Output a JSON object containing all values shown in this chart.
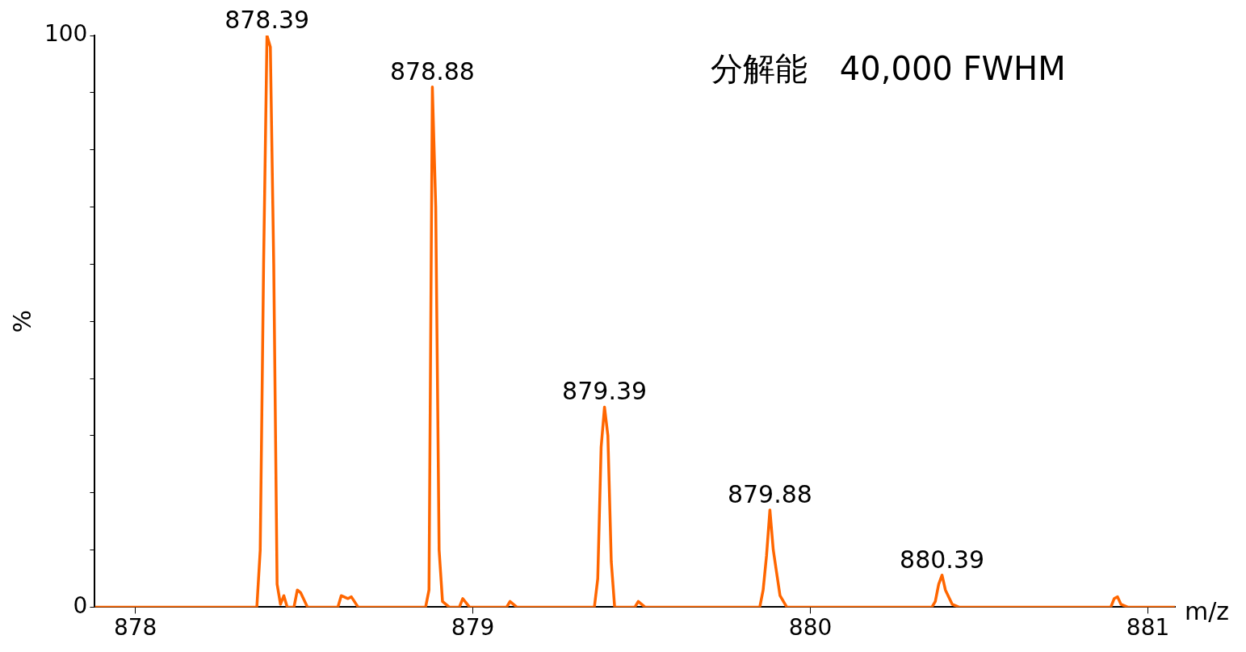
{
  "chart_data": {
    "type": "line",
    "xlabel": "m/z",
    "ylabel": "%",
    "color": "#ff6600",
    "marker": "none",
    "line_style": "solid",
    "grid": false,
    "legend": false,
    "x": [
      877.88,
      878.0,
      878.36,
      878.37,
      878.38,
      878.39,
      878.4,
      878.41,
      878.42,
      878.43,
      878.44,
      878.45,
      878.47,
      878.48,
      878.49,
      878.51,
      878.6,
      878.61,
      878.63,
      878.64,
      878.66,
      878.86,
      878.87,
      878.88,
      878.89,
      878.9,
      878.91,
      878.93,
      878.96,
      878.97,
      878.99,
      879.1,
      879.11,
      879.13,
      879.36,
      879.37,
      879.38,
      879.39,
      879.4,
      879.41,
      879.42,
      879.48,
      879.49,
      879.51,
      879.85,
      879.86,
      879.87,
      879.88,
      879.89,
      879.9,
      879.91,
      879.93,
      880.36,
      880.37,
      880.38,
      880.39,
      880.4,
      880.42,
      880.44,
      880.89,
      880.9,
      880.91,
      880.92,
      880.94,
      881.08
    ],
    "series": [
      {
        "values": [
          0,
          0,
          0,
          10,
          60,
          100,
          98,
          60,
          4,
          0.5,
          2,
          0,
          0,
          3,
          2.5,
          0,
          0,
          2,
          1.5,
          1.8,
          0,
          0,
          3,
          91,
          70,
          10,
          1,
          0,
          0,
          1.5,
          0,
          0,
          1,
          0,
          0,
          5,
          28,
          35,
          30,
          8,
          0,
          0,
          1,
          0,
          0,
          3,
          9,
          17,
          10,
          6,
          2,
          0,
          0,
          1,
          4,
          5.6,
          3,
          0.5,
          0,
          0,
          1.5,
          1.8,
          0.5,
          0,
          0
        ]
      }
    ],
    "xlim": [
      877.88,
      881.08
    ],
    "xticks": [
      878,
      879,
      880,
      881
    ],
    "ylim": [
      0,
      100
    ],
    "yticks": [
      0,
      {
        "value": 10,
        "label": null
      },
      {
        "value": 20,
        "label": null
      },
      {
        "value": 30,
        "label": null
      },
      {
        "value": 40,
        "label": null
      },
      {
        "value": 50,
        "label": null
      },
      {
        "value": 60,
        "label": null
      },
      {
        "value": 70,
        "label": null
      },
      {
        "value": 80,
        "label": null
      },
      {
        "value": 90,
        "label": null
      },
      100
    ],
    "annotations": [
      {
        "text": "878.39",
        "x": 878.39,
        "y": 100
      },
      {
        "text": "878.88",
        "x": 878.88,
        "y": 91
      },
      {
        "text": "879.39",
        "x": 879.39,
        "y": 35
      },
      {
        "text": "879.88",
        "x": 879.88,
        "y": 17
      },
      {
        "text": "880.39",
        "x": 880.39,
        "y": 5.6
      },
      "分解能　40,000 FWHM"
    ]
  }
}
